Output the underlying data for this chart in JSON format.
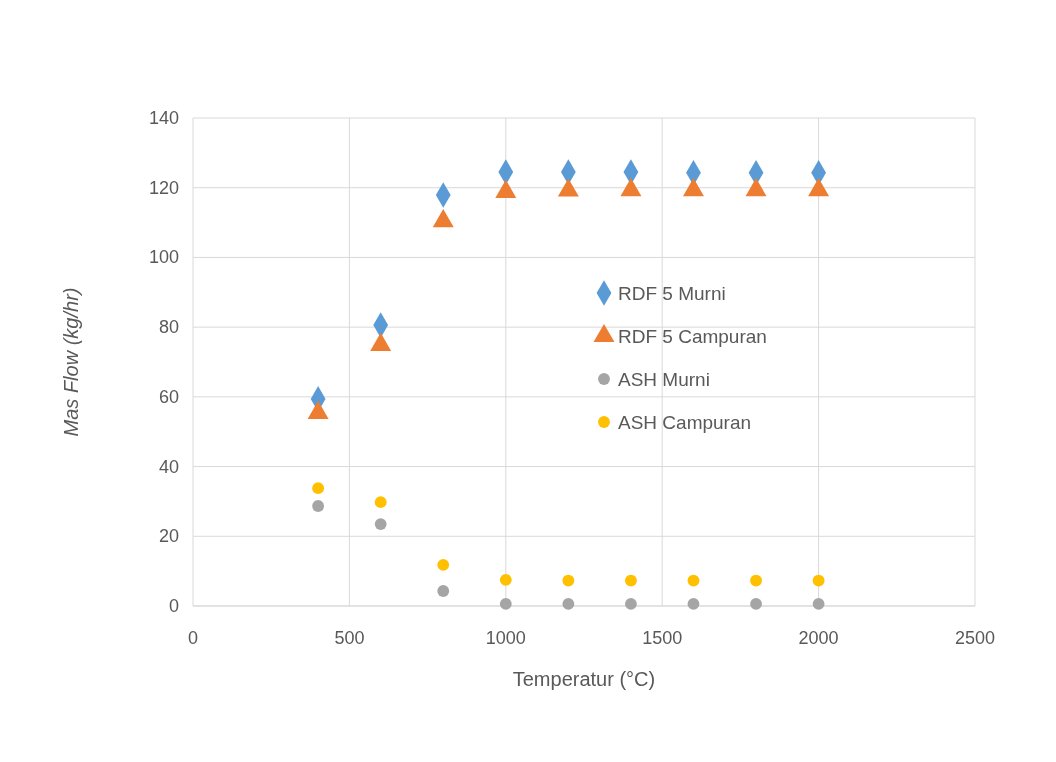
{
  "chart_data": {
    "type": "scatter",
    "xlabel": "Temperatur (°C)",
    "ylabel": "Mas Flow (kg/hr)",
    "xlim": [
      0,
      2500
    ],
    "xticks": [
      0,
      500,
      1000,
      1500,
      2000,
      2500
    ],
    "ylim": [
      0,
      140
    ],
    "yticks": [
      0,
      20,
      40,
      60,
      80,
      100,
      120,
      140
    ],
    "grid": true,
    "legend": "right",
    "x": [
      400,
      600,
      800,
      1000,
      1200,
      1400,
      1600,
      1800,
      2000
    ],
    "series": [
      {
        "name": "RDF 5 Murni",
        "color": "#5b9bd5",
        "marker": "diamond",
        "values": [
          59.4,
          80.6,
          117.9,
          124.5,
          124.5,
          124.5,
          124.3,
          124.3,
          124.3
        ]
      },
      {
        "name": "RDF 5 Campuran",
        "color": "#ed7d31",
        "marker": "triangle",
        "values": [
          55.4,
          74.9,
          110.4,
          118.8,
          119.2,
          119.3,
          119.3,
          119.3,
          119.3
        ]
      },
      {
        "name": "ASH Murni",
        "color": "#a5a5a5",
        "marker": "circle",
        "values": [
          28.7,
          23.5,
          4.3,
          0.6,
          0.6,
          0.6,
          0.6,
          0.6,
          0.6
        ]
      },
      {
        "name": "ASH Campuran",
        "color": "#ffc000",
        "marker": "circle",
        "values": [
          33.8,
          29.8,
          11.8,
          7.5,
          7.3,
          7.3,
          7.3,
          7.3,
          7.3
        ]
      }
    ]
  }
}
